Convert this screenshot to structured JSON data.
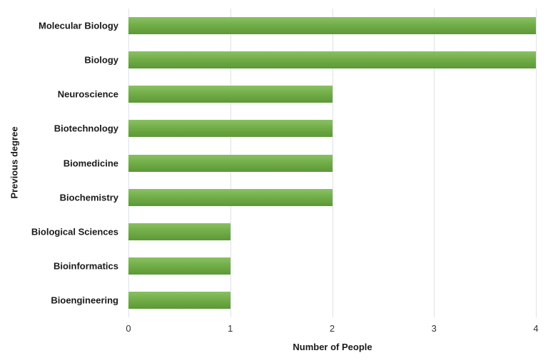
{
  "chart_data": {
    "type": "bar",
    "orientation": "horizontal",
    "title": "",
    "xlabel": "Number of People",
    "ylabel": "Previous degree",
    "categories": [
      "Molecular Biology",
      "Biology",
      "Neuroscience",
      "Biotechnology",
      "Biomedicine",
      "Biochemistry",
      "Biological Sciences",
      "Bioinformatics",
      "Bioengineering"
    ],
    "values": [
      4,
      4,
      2,
      2,
      2,
      2,
      1,
      1,
      1
    ],
    "xlim": [
      0,
      4
    ],
    "xticks": [
      0,
      1,
      2,
      3,
      4
    ],
    "grid": true,
    "legend": false,
    "colors": {
      "bar_top": "#8ac163",
      "bar_mid": "#71ad47",
      "bar_bottom": "#5d9838",
      "gridline": "#dde3e8",
      "label": "#1a1a1a",
      "tick": "#333333",
      "background": "#ffffff"
    }
  }
}
